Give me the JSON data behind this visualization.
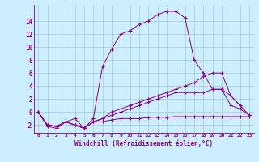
{
  "xlabel": "Windchill (Refroidissement éolien,°C)",
  "ylabel": "",
  "bg_color": "#cceeff",
  "line_color": "#880088",
  "grid_color": "#aacccc",
  "xlim": [
    -0.5,
    23.5
  ],
  "ylim": [
    -3.2,
    16.5
  ],
  "xticks": [
    0,
    1,
    2,
    3,
    4,
    5,
    6,
    7,
    8,
    9,
    10,
    11,
    12,
    13,
    14,
    15,
    16,
    17,
    18,
    19,
    20,
    21,
    22,
    23
  ],
  "yticks": [
    -2,
    0,
    2,
    4,
    6,
    8,
    10,
    12,
    14
  ],
  "lines": [
    {
      "x": [
        0,
        1,
        2,
        3,
        4,
        5,
        6,
        7,
        8,
        9,
        10,
        11,
        12,
        13,
        14,
        15,
        16,
        17,
        18,
        19,
        20,
        21,
        22,
        23
      ],
      "y": [
        0,
        -2.2,
        -2.5,
        -1.5,
        -1,
        -2.5,
        -1,
        7,
        9.7,
        12,
        12.5,
        13.5,
        14,
        15,
        15.5,
        15.5,
        14.5,
        8,
        6,
        3.5,
        3.5,
        1.0,
        0.5,
        -0.5
      ]
    },
    {
      "x": [
        0,
        1,
        2,
        3,
        4,
        5,
        6,
        7,
        8,
        9,
        10,
        11,
        12,
        13,
        14,
        15,
        16,
        17,
        18,
        19,
        20,
        21,
        22,
        23
      ],
      "y": [
        0,
        -2,
        -2.2,
        -1.5,
        -2,
        -2.5,
        -1.5,
        -1.5,
        -1.2,
        -1.0,
        -1.0,
        -1.0,
        -0.8,
        -0.8,
        -0.8,
        -0.7,
        -0.7,
        -0.7,
        -0.7,
        -0.7,
        -0.7,
        -0.7,
        -0.7,
        -0.7
      ]
    },
    {
      "x": [
        0,
        1,
        2,
        3,
        4,
        5,
        6,
        7,
        8,
        9,
        10,
        11,
        12,
        13,
        14,
        15,
        16,
        17,
        18,
        19,
        20,
        21,
        22,
        23
      ],
      "y": [
        0,
        -2,
        -2.2,
        -1.5,
        -2,
        -2.5,
        -1.5,
        -1.0,
        -0.5,
        0,
        0.5,
        1.0,
        1.5,
        2.0,
        2.5,
        3.0,
        3.0,
        3.0,
        3.0,
        3.5,
        3.5,
        2.5,
        1.0,
        -0.5
      ]
    },
    {
      "x": [
        0,
        1,
        2,
        3,
        4,
        5,
        6,
        7,
        8,
        9,
        10,
        11,
        12,
        13,
        14,
        15,
        16,
        17,
        18,
        19,
        20,
        21,
        22,
        23
      ],
      "y": [
        0,
        -2,
        -2.2,
        -1.5,
        -2,
        -2.5,
        -1.5,
        -1.0,
        0,
        0.5,
        1.0,
        1.5,
        2.0,
        2.5,
        3.0,
        3.5,
        4.0,
        4.5,
        5.5,
        6.0,
        6.0,
        2.5,
        1.0,
        -0.5
      ]
    }
  ]
}
